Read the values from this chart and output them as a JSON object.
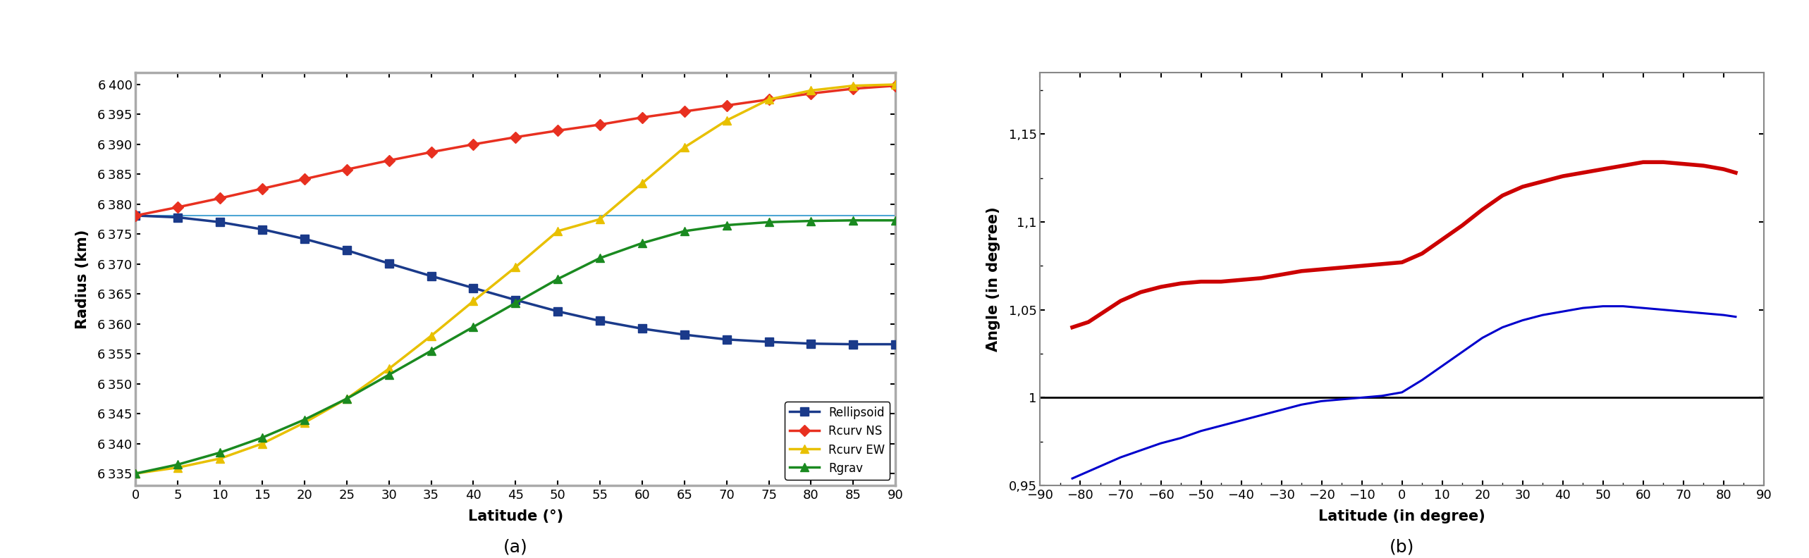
{
  "fig_width": 25.66,
  "fig_height": 7.92,
  "dpi": 100,
  "plot_a": {
    "title": "(a)",
    "xlabel": "Latitude (°)",
    "ylabel": "Radius (km)",
    "xlim": [
      0,
      90
    ],
    "ylim": [
      6333,
      6402
    ],
    "xticks": [
      0,
      5,
      10,
      15,
      20,
      25,
      30,
      35,
      40,
      45,
      50,
      55,
      60,
      65,
      70,
      75,
      80,
      85,
      90
    ],
    "yticks": [
      6335,
      6340,
      6345,
      6350,
      6355,
      6360,
      6365,
      6370,
      6375,
      6380,
      6385,
      6390,
      6395,
      6400
    ],
    "bg_color": "#ffffff",
    "frame_color": "#aaaaaa",
    "series": {
      "Rellipsoid": {
        "color": "#1a3a8a",
        "marker": "s",
        "markersize": 9,
        "linewidth": 2.5,
        "x": [
          0,
          5,
          10,
          15,
          20,
          25,
          30,
          35,
          40,
          45,
          50,
          55,
          60,
          65,
          70,
          75,
          80,
          85,
          90
        ],
        "y": [
          6378.1,
          6377.8,
          6377.0,
          6375.8,
          6374.2,
          6372.3,
          6370.1,
          6368.0,
          6366.0,
          6364.0,
          6362.1,
          6360.5,
          6359.2,
          6358.2,
          6357.4,
          6357.0,
          6356.7,
          6356.6,
          6356.6
        ]
      },
      "Rcurv NS": {
        "color": "#e83020",
        "marker": "D",
        "markersize": 8,
        "linewidth": 2.5,
        "x": [
          0,
          5,
          10,
          15,
          20,
          25,
          30,
          35,
          40,
          45,
          50,
          55,
          60,
          65,
          70,
          75,
          80,
          85,
          90
        ],
        "y": [
          6378.1,
          6379.5,
          6381.0,
          6382.6,
          6384.2,
          6385.8,
          6387.3,
          6388.7,
          6390.0,
          6391.2,
          6392.3,
          6393.3,
          6394.5,
          6395.5,
          6396.5,
          6397.5,
          6398.5,
          6399.3,
          6399.8
        ]
      },
      "Rcurv EW": {
        "color": "#e8c000",
        "marker": "^",
        "markersize": 9,
        "linewidth": 2.5,
        "x": [
          0,
          5,
          10,
          15,
          20,
          25,
          30,
          35,
          40,
          45,
          50,
          55,
          60,
          65,
          70,
          75,
          80,
          85,
          90
        ],
        "y": [
          6335.0,
          6336.0,
          6337.5,
          6340.0,
          6343.5,
          6347.5,
          6352.5,
          6358.0,
          6363.8,
          6369.5,
          6375.5,
          6377.5,
          6383.5,
          6389.5,
          6394.0,
          6397.5,
          6399.0,
          6399.8,
          6400.0
        ]
      },
      "Rgrav": {
        "color": "#1a8a20",
        "marker": "^",
        "markersize": 9,
        "linewidth": 2.5,
        "x": [
          0,
          5,
          10,
          15,
          20,
          25,
          30,
          35,
          40,
          45,
          50,
          55,
          60,
          65,
          70,
          75,
          80,
          85,
          90
        ],
        "y": [
          6335.0,
          6336.5,
          6338.5,
          6341.0,
          6344.0,
          6347.5,
          6351.5,
          6355.5,
          6359.5,
          6363.5,
          6367.5,
          6371.0,
          6373.5,
          6375.5,
          6376.5,
          6377.0,
          6377.2,
          6377.3,
          6377.3
        ]
      }
    },
    "hline": {
      "y": 6378.1,
      "color": "#4da6d4",
      "linewidth": 1.5
    }
  },
  "plot_b": {
    "title": "(b)",
    "xlabel": "Latitude (in degree)",
    "ylabel": "Angle (in degree)",
    "xlim": [
      -90,
      90
    ],
    "ylim": [
      0.95,
      1.185
    ],
    "xticks": [
      -90,
      -80,
      -70,
      -60,
      -50,
      -40,
      -30,
      -20,
      -10,
      0,
      10,
      20,
      30,
      40,
      50,
      60,
      70,
      80,
      90
    ],
    "yticks": [
      0.95,
      1.0,
      1.05,
      1.1,
      1.15
    ],
    "ytick_labels": [
      "0,95",
      "1",
      "1,05",
      "1,1",
      "1,15"
    ],
    "series": {
      "red": {
        "color": "#cc0000",
        "linewidth": 4.0,
        "x": [
          -82,
          -78,
          -74,
          -70,
          -65,
          -60,
          -55,
          -50,
          -45,
          -40,
          -35,
          -30,
          -25,
          -20,
          -15,
          -10,
          -5,
          0,
          5,
          10,
          15,
          20,
          25,
          30,
          35,
          40,
          45,
          50,
          55,
          60,
          65,
          70,
          75,
          80,
          83
        ],
        "y": [
          1.04,
          1.043,
          1.049,
          1.055,
          1.06,
          1.063,
          1.065,
          1.066,
          1.066,
          1.067,
          1.068,
          1.07,
          1.072,
          1.073,
          1.074,
          1.075,
          1.076,
          1.077,
          1.082,
          1.09,
          1.098,
          1.107,
          1.115,
          1.12,
          1.123,
          1.126,
          1.128,
          1.13,
          1.132,
          1.134,
          1.134,
          1.133,
          1.132,
          1.13,
          1.128
        ]
      },
      "blue": {
        "color": "#0000cc",
        "linewidth": 2.2,
        "x": [
          -82,
          -78,
          -74,
          -70,
          -65,
          -60,
          -55,
          -50,
          -45,
          -40,
          -35,
          -30,
          -25,
          -20,
          -15,
          -10,
          -5,
          0,
          5,
          10,
          15,
          20,
          25,
          30,
          35,
          40,
          45,
          50,
          55,
          60,
          65,
          70,
          75,
          80,
          83
        ],
        "y": [
          0.954,
          0.958,
          0.962,
          0.966,
          0.97,
          0.974,
          0.977,
          0.981,
          0.984,
          0.987,
          0.99,
          0.993,
          0.996,
          0.998,
          0.999,
          1.0,
          1.001,
          1.003,
          1.01,
          1.018,
          1.026,
          1.034,
          1.04,
          1.044,
          1.047,
          1.049,
          1.051,
          1.052,
          1.052,
          1.051,
          1.05,
          1.049,
          1.048,
          1.047,
          1.046
        ]
      },
      "black": {
        "color": "#000000",
        "linewidth": 2.0,
        "x": [
          -90,
          90
        ],
        "y": [
          1.0,
          1.0
        ]
      }
    }
  }
}
